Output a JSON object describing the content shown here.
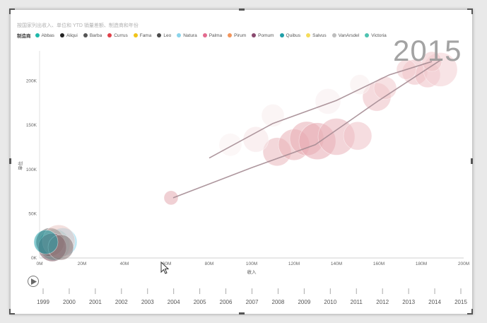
{
  "visual": {
    "title": "按国家列出收入、单位和 YTD 销量差额、制造商和年份",
    "year_label": "2015",
    "legend_title": "制造商"
  },
  "legend": [
    {
      "name": "Abbas",
      "color": "#1fb8aa"
    },
    {
      "name": "Aliqui",
      "color": "#222222"
    },
    {
      "name": "Barba",
      "color": "#555555"
    },
    {
      "name": "Currus",
      "color": "#e0404a"
    },
    {
      "name": "Fama",
      "color": "#f0c419"
    },
    {
      "name": "Leo",
      "color": "#4a4a4a"
    },
    {
      "name": "Natura",
      "color": "#8ad4eb"
    },
    {
      "name": "Palma",
      "color": "#e36b8f"
    },
    {
      "name": "Pirum",
      "color": "#f2945a"
    },
    {
      "name": "Pomum",
      "color": "#8a4a6f"
    },
    {
      "name": "Quibus",
      "color": "#1f9fa8"
    },
    {
      "name": "Salvus",
      "color": "#f5dc5a"
    },
    {
      "name": "VanArsdel",
      "color": "#bdbdbd"
    },
    {
      "name": "Victoria",
      "color": "#4ec2b0"
    }
  ],
  "chart_data": {
    "type": "scatter",
    "title": "按国家列出收入、单位和 YTD 销量差额、制造商和年份",
    "xlabel": "收入",
    "ylabel": "单位",
    "xlim": [
      0,
      200
    ],
    "ylim": [
      0,
      250
    ],
    "x_ticks": [
      "0M",
      "20M",
      "40M",
      "60M",
      "80M",
      "100M",
      "120M",
      "140M",
      "160M",
      "180M",
      "200M"
    ],
    "y_ticks": [
      "0K",
      "50K",
      "100K",
      "150K",
      "200K"
    ],
    "x_tick_values": [
      0,
      20,
      40,
      60,
      80,
      100,
      120,
      140,
      160,
      180,
      200
    ],
    "y_tick_values": [
      0,
      50,
      100,
      150,
      200
    ],
    "bubbles_2015": [
      {
        "x": 62,
        "y": 68,
        "r": 10,
        "color": "#e3a9b0"
      },
      {
        "x": 112,
        "y": 120,
        "r": 20,
        "color": "#eab6bc"
      },
      {
        "x": 120,
        "y": 128,
        "r": 22,
        "color": "#e9b0b7"
      },
      {
        "x": 126,
        "y": 135,
        "r": 24,
        "color": "#e8adb4"
      },
      {
        "x": 131,
        "y": 132,
        "r": 26,
        "color": "#e7aab2"
      },
      {
        "x": 140,
        "y": 137,
        "r": 26,
        "color": "#eab2b9"
      },
      {
        "x": 150,
        "y": 138,
        "r": 20,
        "color": "#efc1c6"
      },
      {
        "x": 159,
        "y": 182,
        "r": 20,
        "color": "#edbdc2"
      },
      {
        "x": 163,
        "y": 192,
        "r": 16,
        "color": "#f1c8cc"
      },
      {
        "x": 177,
        "y": 210,
        "r": 18,
        "color": "#edbec3"
      },
      {
        "x": 183,
        "y": 207,
        "r": 18,
        "color": "#eebfc4"
      },
      {
        "x": 189,
        "y": 213,
        "r": 24,
        "color": "#f2cdd1"
      },
      {
        "x": 185,
        "y": 222,
        "r": 14,
        "color": "#efc3c7"
      },
      {
        "x": 173,
        "y": 213,
        "r": 14,
        "color": "#f1c8cc"
      },
      {
        "x": 102,
        "y": 134,
        "r": 18,
        "color": "#f6e3e5"
      },
      {
        "x": 136,
        "y": 177,
        "r": 18,
        "color": "#f8ecee"
      },
      {
        "x": 110,
        "y": 161,
        "r": 16,
        "color": "#f8eced"
      },
      {
        "x": 90,
        "y": 128,
        "r": 16,
        "color": "#f9f1f1"
      },
      {
        "x": 151,
        "y": 196,
        "r": 14,
        "color": "#f8eced"
      },
      {
        "x": 7,
        "y": 15,
        "r": 22,
        "color": "#4ec2b0"
      },
      {
        "x": 11,
        "y": 18,
        "r": 20,
        "color": "#8ad4eb"
      },
      {
        "x": 5,
        "y": 18,
        "r": 20,
        "color": "#555555"
      },
      {
        "x": 9,
        "y": 19,
        "r": 23,
        "color": "#e9c6c3"
      },
      {
        "x": 6,
        "y": 12,
        "r": 20,
        "color": "#7d5460"
      },
      {
        "x": 10,
        "y": 12,
        "r": 18,
        "color": "#8a7777"
      },
      {
        "x": 3,
        "y": 18,
        "r": 17,
        "color": "#1f9fa8"
      }
    ],
    "trails": [
      {
        "points": [
          [
            63,
            68
          ],
          [
            100,
            102
          ],
          [
            130,
            128
          ],
          [
            160,
            178
          ],
          [
            190,
            225
          ]
        ],
        "color": "#a58c93"
      },
      {
        "points": [
          [
            80,
            113
          ],
          [
            110,
            152
          ],
          [
            140,
            178
          ],
          [
            165,
            207
          ],
          [
            185,
            222
          ]
        ],
        "color": "#a58c93"
      }
    ]
  },
  "timeline": {
    "years": [
      "1999",
      "2000",
      "2001",
      "2002",
      "2003",
      "2004",
      "2005",
      "2006",
      "2007",
      "2008",
      "2009",
      "2010",
      "2011",
      "2012",
      "2013",
      "2014",
      "2015"
    ],
    "current": "2015"
  }
}
